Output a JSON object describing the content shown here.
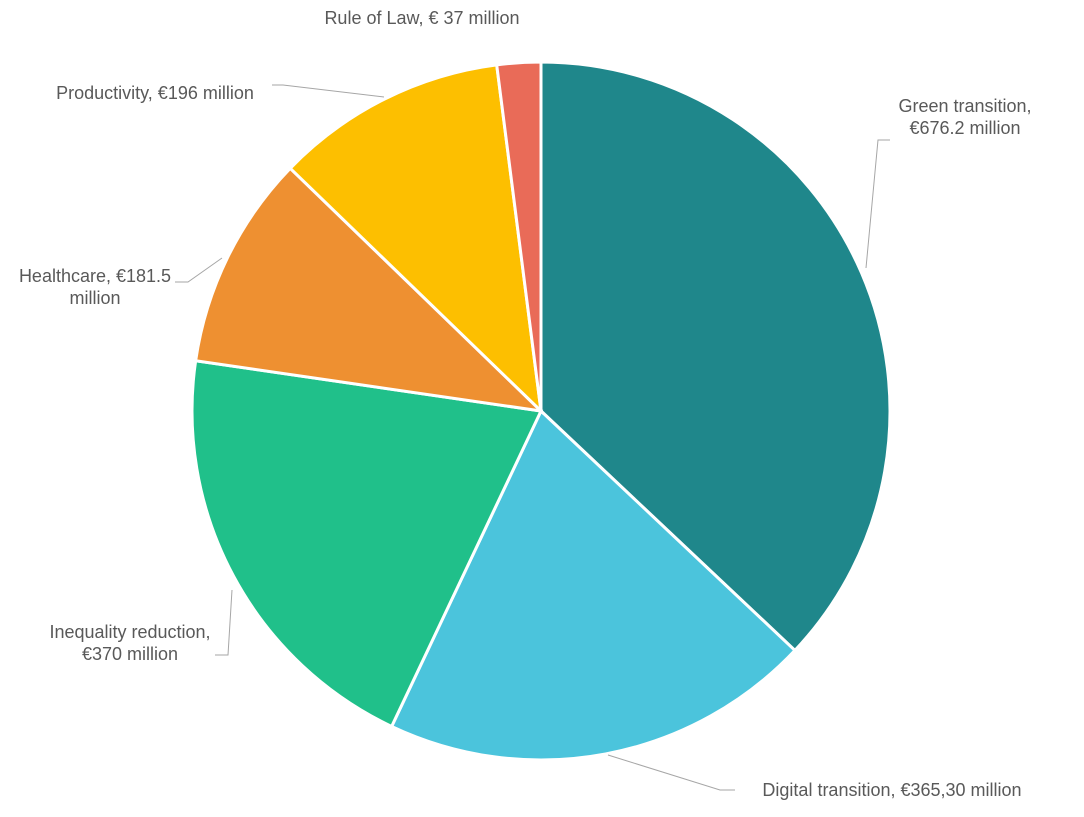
{
  "chart_data": {
    "type": "pie",
    "values": [
      676.2,
      365.3,
      370,
      181.5,
      196,
      37
    ],
    "value_labels": [
      "Green transition, €676.2 million",
      "Digital transition, €365,30 million",
      "Inequality reduction, €370 million",
      "Healthcare, €181.5 million",
      "Productivity, €196 million",
      "Rule of Law, € 37 million"
    ],
    "colors": [
      "#1f878b",
      "#4bc4dc",
      "#20c08a",
      "#ee9031",
      "#fdbf00",
      "#e96b58"
    ]
  }
}
